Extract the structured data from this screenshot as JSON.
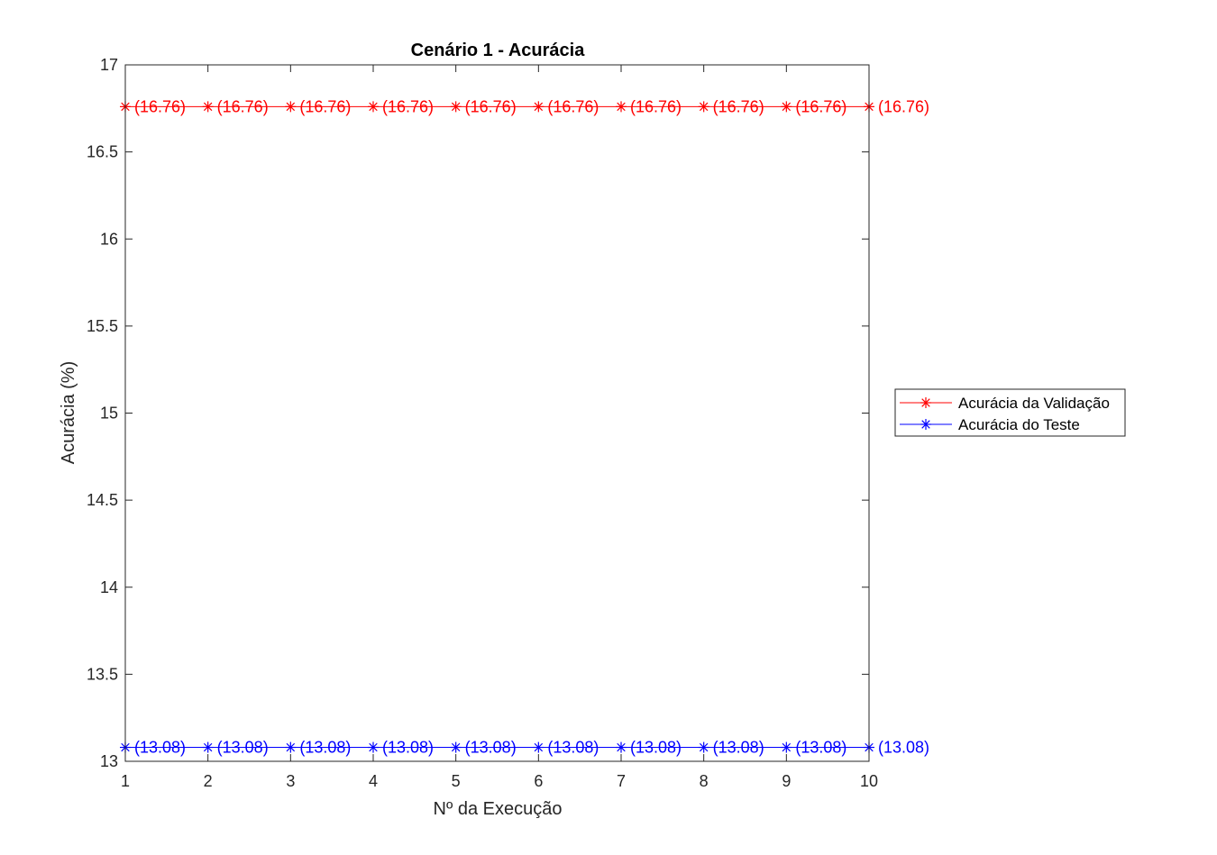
{
  "chart_data": {
    "type": "line",
    "title": "Cenário 1 - Acurácia",
    "xlabel": "Nº da Execução",
    "ylabel": "Acurácia (%)",
    "xlim": [
      1,
      10
    ],
    "ylim": [
      13,
      17
    ],
    "x": [
      1,
      2,
      3,
      4,
      5,
      6,
      7,
      8,
      9,
      10
    ],
    "xticks": [
      "1",
      "2",
      "3",
      "4",
      "5",
      "6",
      "7",
      "8",
      "9",
      "10"
    ],
    "yticks": [
      "13",
      "13.5",
      "14",
      "14.5",
      "15",
      "15.5",
      "16",
      "16.5",
      "17"
    ],
    "grid": false,
    "legend_position": "outside-right",
    "series": [
      {
        "name": "Acurácia da Validação",
        "color": "#ff0000",
        "marker": "asterisk",
        "values": [
          16.76,
          16.76,
          16.76,
          16.76,
          16.76,
          16.76,
          16.76,
          16.76,
          16.76,
          16.76
        ],
        "labels": [
          "(16.76)",
          "(16.76)",
          "(16.76)",
          "(16.76)",
          "(16.76)",
          "(16.76)",
          "(16.76)",
          "(16.76)",
          "(16.76)",
          "(16.76)"
        ]
      },
      {
        "name": "Acurácia do Teste",
        "color": "#0000ff",
        "marker": "asterisk",
        "values": [
          13.08,
          13.08,
          13.08,
          13.08,
          13.08,
          13.08,
          13.08,
          13.08,
          13.08,
          13.08
        ],
        "labels": [
          "(13.08)",
          "(13.08)",
          "(13.08)",
          "(13.08)",
          "(13.08)",
          "(13.08)",
          "(13.08)",
          "(13.08)",
          "(13.08)",
          "(13.08)"
        ]
      }
    ]
  }
}
